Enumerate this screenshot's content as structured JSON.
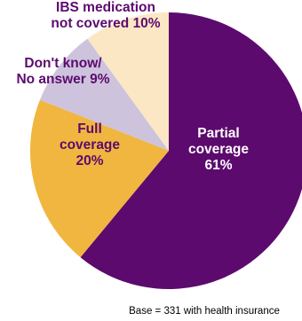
{
  "chart_data": {
    "type": "pie",
    "slices": [
      {
        "label_lines": [
          "Partial",
          "coverage",
          "61%"
        ],
        "value": 61,
        "color": "#5c0a6e",
        "label_color": "#ffffff"
      },
      {
        "label_lines": [
          "Full",
          "coverage",
          "20%"
        ],
        "value": 20,
        "color": "#f0b63f",
        "label_color": "#5c0a6e"
      },
      {
        "label_lines": [
          "Don't know/",
          "No answer 9%"
        ],
        "value": 9,
        "color": "#cec3dc",
        "label_color": "#5c0a6e"
      },
      {
        "label_lines": [
          "IBS medication",
          "not covered 10%"
        ],
        "value": 10,
        "color": "#fbe7c4",
        "label_color": "#5c0a6e"
      }
    ],
    "footnote": "Base = 331 with health insurance",
    "legend": "none"
  }
}
